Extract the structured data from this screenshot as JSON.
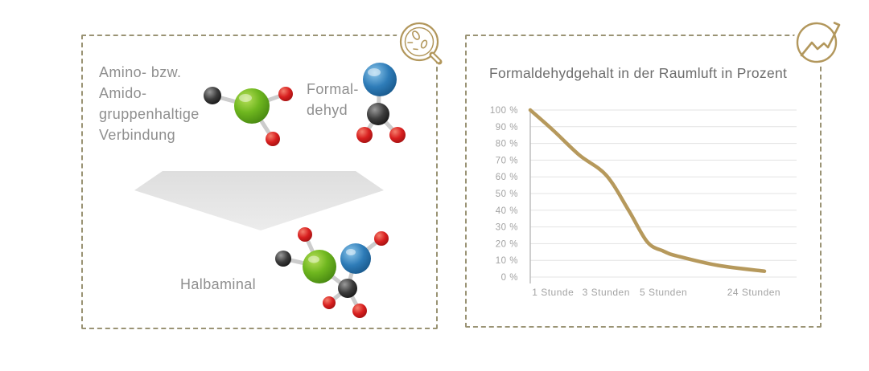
{
  "colors": {
    "accent_gold": "#b2975c",
    "panel_border": "#9a9374",
    "grid": "#e3e3e3",
    "axis": "#b9b9b9",
    "tick_text": "#a3a3a3",
    "label_text": "#8f8f8f",
    "title_text": "#6d6d6d",
    "arrow_gray": "#e2e2e2"
  },
  "left_panel": {
    "icon": "magnifier-molecules-icon",
    "reactant_label": "Amino- bzw.\nAmido-\ngruppenhaltige\nVerbindung",
    "formaldehyde_label": "Formal-\ndehyd",
    "product_label": "Halbaminal",
    "molecules": [
      "amine-compound",
      "formaldehyde",
      "halbaminal"
    ]
  },
  "right_panel": {
    "icon": "trend-line-icon"
  },
  "chart_data": {
    "type": "line",
    "title": "Formaldehydgehalt in der Raumluft in Prozent",
    "xlabel": "",
    "ylabel": "",
    "ylim": [
      0,
      100
    ],
    "grid": true,
    "legend": false,
    "line_color": "#b6995c",
    "categories": [
      "1 Stunde",
      "3 Stunden",
      "5 Stunden",
      "24 Stunden"
    ],
    "series": [
      {
        "name": "Formaldehydgehalt",
        "values_at_categories": [
          88,
          61,
          15,
          3.5
        ]
      }
    ],
    "start_value_percent": 100,
    "y_ticks": [
      {
        "label": "100 %",
        "value": 100
      },
      {
        "label": "90 %",
        "value": 90
      },
      {
        "label": "80 %",
        "value": 80
      },
      {
        "label": "70 %",
        "value": 70
      },
      {
        "label": "60 %",
        "value": 60
      },
      {
        "label": "50 %",
        "value": 50
      },
      {
        "label": "40 %",
        "value": 40
      },
      {
        "label": "30 %",
        "value": 30
      },
      {
        "label": "20 %",
        "value": 20
      },
      {
        "label": "10 %",
        "value": 10
      },
      {
        "label": "0 %",
        "value": 0
      }
    ],
    "x_ticks": [
      {
        "label": "1 Stunde",
        "fx": 0.097
      },
      {
        "label": "3 Stunden",
        "fx": 0.324
      },
      {
        "label": "5 Stunden",
        "fx": 0.569
      },
      {
        "label": "24 Stunden",
        "fx": 0.955
      }
    ],
    "curve_samples": [
      {
        "fx": 0.0,
        "pct": 100
      },
      {
        "fx": 0.097,
        "pct": 88
      },
      {
        "fx": 0.21,
        "pct": 73
      },
      {
        "fx": 0.324,
        "pct": 61
      },
      {
        "fx": 0.42,
        "pct": 40
      },
      {
        "fx": 0.5,
        "pct": 21
      },
      {
        "fx": 0.569,
        "pct": 15.5
      },
      {
        "fx": 0.63,
        "pct": 12.5
      },
      {
        "fx": 0.8,
        "pct": 7
      },
      {
        "fx": 1.0,
        "pct": 3.5
      }
    ]
  }
}
